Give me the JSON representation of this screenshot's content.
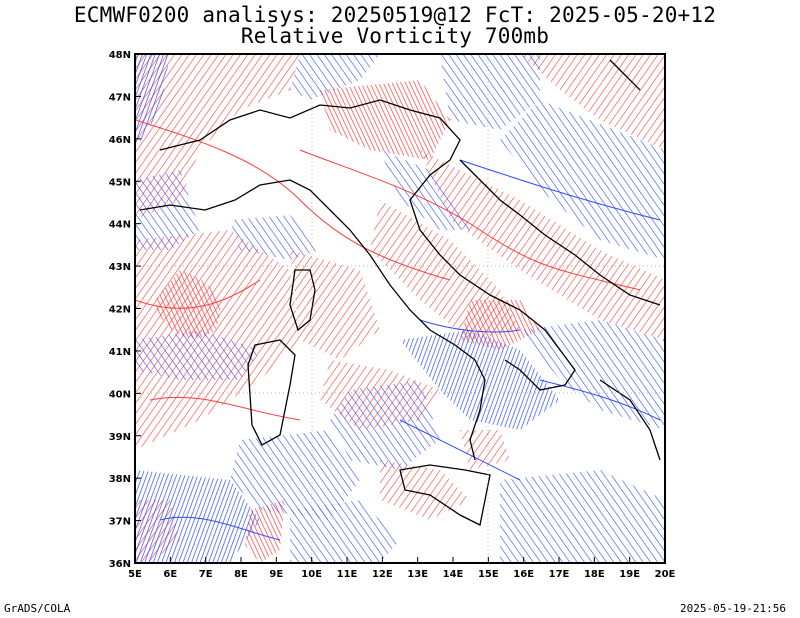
{
  "header": {
    "line1": "ECMWF0200 analisys: 20250519@12 FcT: 2025-05-20+12",
    "line2": "Relative Vorticity 700mb"
  },
  "footer": {
    "left": "GrADS/COLA",
    "right": "2025-05-19-21:56"
  },
  "axes": {
    "lon_labels": [
      "5E",
      "6E",
      "7E",
      "8E",
      "9E",
      "10E",
      "11E",
      "12E",
      "13E",
      "14E",
      "15E",
      "16E",
      "17E",
      "18E",
      "19E",
      "20E"
    ],
    "lat_labels": [
      "48N",
      "47N",
      "46N",
      "45N",
      "44N",
      "43N",
      "42N",
      "41N",
      "40N",
      "39N",
      "38N",
      "37N",
      "36N"
    ],
    "lon_range": [
      5,
      20
    ],
    "lat_range": [
      36,
      48
    ]
  },
  "colors": {
    "positive_vorticity": "#ff3b3b",
    "negative_vorticity": "#2f4cff",
    "coastline": "#000000",
    "grid_dots": "#999999"
  }
}
